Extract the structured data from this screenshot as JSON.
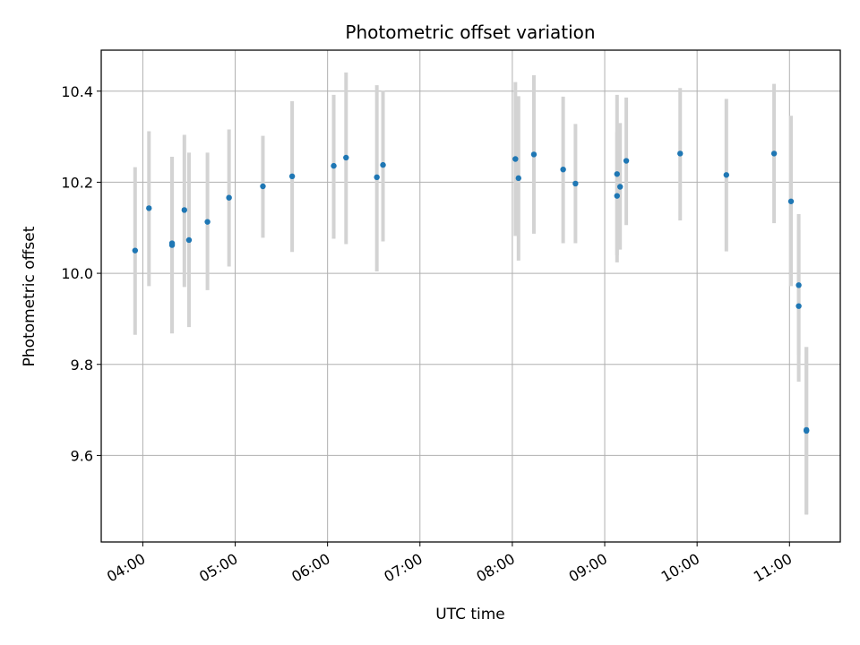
{
  "chart_data": {
    "type": "scatter",
    "title": "Photometric offset variation",
    "xlabel": "UTC time",
    "ylabel": "Photometric offset",
    "grid": true,
    "xlim": [
      "03:33",
      "11:33"
    ],
    "ylim": [
      9.41,
      10.49
    ],
    "x_ticks": [
      "04:00",
      "05:00",
      "06:00",
      "07:00",
      "08:00",
      "09:00",
      "10:00",
      "11:00"
    ],
    "y_ticks": [
      9.6,
      9.8,
      10.0,
      10.2,
      10.4
    ],
    "y_tick_labels": [
      "9.6",
      "9.8",
      "10.0",
      "10.2",
      "10.4"
    ],
    "colors": {
      "points": "#1f77b4",
      "errorbars": "#d3d3d3",
      "grid": "#b0b0b0"
    },
    "points": [
      {
        "x": "03:55",
        "y": 10.05,
        "ylow": 9.865,
        "yhigh": 10.233
      },
      {
        "x": "04:04",
        "y": 10.143,
        "ylow": 9.972,
        "yhigh": 10.312
      },
      {
        "x": "04:19",
        "y": 10.066,
        "ylow": 9.868,
        "yhigh": 10.256
      },
      {
        "x": "04:19",
        "y": 10.062,
        "ylow": 9.868,
        "yhigh": 10.256
      },
      {
        "x": "04:27",
        "y": 10.139,
        "ylow": 9.97,
        "yhigh": 10.304
      },
      {
        "x": "04:30",
        "y": 10.073,
        "ylow": 9.882,
        "yhigh": 10.265
      },
      {
        "x": "04:42",
        "y": 10.113,
        "ylow": 9.963,
        "yhigh": 10.265
      },
      {
        "x": "04:56",
        "y": 10.166,
        "ylow": 10.015,
        "yhigh": 10.316
      },
      {
        "x": "05:18",
        "y": 10.191,
        "ylow": 10.078,
        "yhigh": 10.302
      },
      {
        "x": "05:37",
        "y": 10.213,
        "ylow": 10.047,
        "yhigh": 10.378
      },
      {
        "x": "06:04",
        "y": 10.236,
        "ylow": 10.076,
        "yhigh": 10.392
      },
      {
        "x": "06:12",
        "y": 10.254,
        "ylow": 10.064,
        "yhigh": 10.441
      },
      {
        "x": "06:32",
        "y": 10.211,
        "ylow": 10.004,
        "yhigh": 10.413
      },
      {
        "x": "06:36",
        "y": 10.238,
        "ylow": 10.07,
        "yhigh": 10.401
      },
      {
        "x": "08:02",
        "y": 10.251,
        "ylow": 10.082,
        "yhigh": 10.42
      },
      {
        "x": "08:04",
        "y": 10.209,
        "ylow": 10.028,
        "yhigh": 10.389
      },
      {
        "x": "08:14",
        "y": 10.261,
        "ylow": 10.087,
        "yhigh": 10.435
      },
      {
        "x": "08:33",
        "y": 10.228,
        "ylow": 10.066,
        "yhigh": 10.388
      },
      {
        "x": "08:41",
        "y": 10.197,
        "ylow": 10.066,
        "yhigh": 10.328
      },
      {
        "x": "09:08",
        "y": 10.17,
        "ylow": 10.024,
        "yhigh": 10.31
      },
      {
        "x": "09:08",
        "y": 10.218,
        "ylow": 10.04,
        "yhigh": 10.392
      },
      {
        "x": "09:10",
        "y": 10.19,
        "ylow": 10.052,
        "yhigh": 10.33
      },
      {
        "x": "09:14",
        "y": 10.247,
        "ylow": 10.106,
        "yhigh": 10.386
      },
      {
        "x": "09:49",
        "y": 10.263,
        "ylow": 10.116,
        "yhigh": 10.407
      },
      {
        "x": "10:19",
        "y": 10.216,
        "ylow": 10.048,
        "yhigh": 10.383
      },
      {
        "x": "10:50",
        "y": 10.263,
        "ylow": 10.11,
        "yhigh": 10.416
      },
      {
        "x": "11:01",
        "y": 10.158,
        "ylow": 9.972,
        "yhigh": 10.346
      },
      {
        "x": "11:06",
        "y": 9.974,
        "ylow": 9.82,
        "yhigh": 10.13
      },
      {
        "x": "11:06",
        "y": 9.928,
        "ylow": 9.762,
        "yhigh": 10.094
      },
      {
        "x": "11:11",
        "y": 9.656,
        "ylow": 9.471,
        "yhigh": 9.838
      },
      {
        "x": "11:11",
        "y": 9.654,
        "ylow": 9.47,
        "yhigh": 9.838
      }
    ]
  }
}
